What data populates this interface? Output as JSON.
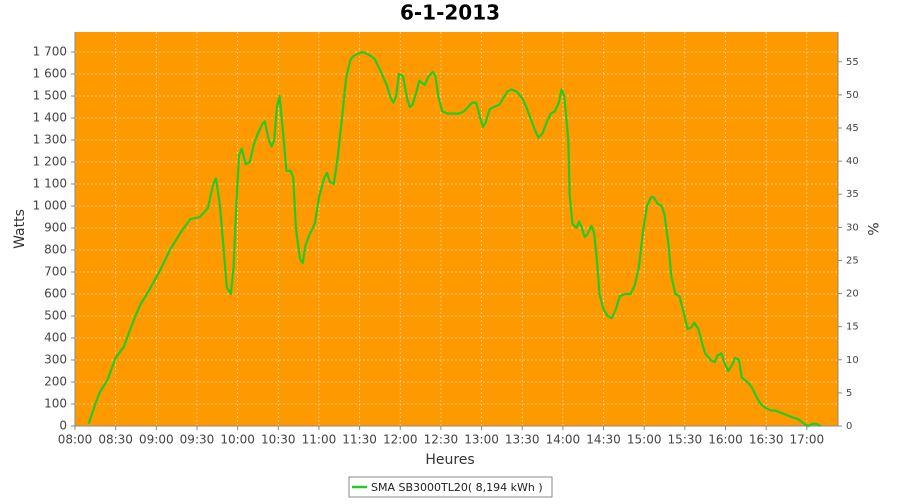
{
  "chart_data": {
    "type": "line",
    "title": "6-1-2013",
    "x_label": "Heures",
    "y_label": "Watts",
    "y2_label": "%",
    "x": [
      "08:10",
      "08:15",
      "08:18",
      "08:24",
      "08:30",
      "08:36",
      "08:42",
      "08:48",
      "08:55",
      "09:03",
      "09:10",
      "09:18",
      "09:25",
      "09:32",
      "09:38",
      "09:42",
      "09:44",
      "09:47",
      "09:50",
      "09:52",
      "09:55",
      "09:57",
      "09:59",
      "10:01",
      "10:03",
      "10:06",
      "10:09",
      "10:12",
      "10:15",
      "10:18",
      "10:20",
      "10:23",
      "10:25",
      "10:27",
      "10:29",
      "10:31",
      "10:34",
      "10:36",
      "10:39",
      "10:41",
      "10:43",
      "10:46",
      "10:48",
      "10:50",
      "10:53",
      "10:57",
      "11:00",
      "11:04",
      "11:06",
      "11:08",
      "11:11",
      "11:14",
      "11:17",
      "11:20",
      "11:23",
      "11:25",
      "11:28",
      "11:32",
      "11:36",
      "11:41",
      "11:45",
      "11:50",
      "11:53",
      "11:55",
      "11:57",
      "11:59",
      "12:02",
      "12:05",
      "12:07",
      "12:09",
      "12:12",
      "12:14",
      "12:18",
      "12:21",
      "12:24",
      "12:26",
      "12:28",
      "12:31",
      "12:35",
      "12:39",
      "12:43",
      "12:47",
      "12:50",
      "12:53",
      "12:56",
      "12:59",
      "13:01",
      "13:03",
      "13:06",
      "13:09",
      "13:13",
      "13:16",
      "13:19",
      "13:22",
      "13:26",
      "13:30",
      "13:33",
      "13:36",
      "13:39",
      "13:42",
      "13:45",
      "13:48",
      "13:51",
      "13:54",
      "13:57",
      "13:59",
      "14:01",
      "14:04",
      "14:05",
      "14:07",
      "14:10",
      "14:12",
      "14:14",
      "14:16",
      "14:18",
      "14:21",
      "14:23",
      "14:25",
      "14:27",
      "14:30",
      "14:33",
      "14:36",
      "14:39",
      "14:42",
      "14:46",
      "14:50",
      "14:53",
      "14:56",
      "14:59",
      "15:02",
      "15:05",
      "15:07",
      "15:10",
      "15:13",
      "15:15",
      "15:18",
      "15:20",
      "15:23",
      "15:26",
      "15:29",
      "15:32",
      "15:35",
      "15:37",
      "15:40",
      "15:43",
      "15:45",
      "15:49",
      "15:52",
      "15:54",
      "15:57",
      "15:59",
      "16:02",
      "16:05",
      "16:07",
      "16:10",
      "16:12",
      "16:16",
      "16:19",
      "16:23",
      "16:26",
      "16:30",
      "16:34",
      "16:37",
      "16:41",
      "16:45",
      "16:49",
      "16:54",
      "16:58",
      "17:01",
      "17:04",
      "17:07",
      "17:10"
    ],
    "series": [
      {
        "name": "SMA SB3000TL20( 8,194 kWh )",
        "color": "#22cc22",
        "values": [
          10,
          100,
          150,
          210,
          310,
          360,
          460,
          550,
          620,
          710,
          800,
          880,
          940,
          950,
          990,
          1100,
          1125,
          1000,
          780,
          630,
          600,
          720,
          1000,
          1230,
          1260,
          1190,
          1200,
          1280,
          1330,
          1370,
          1385,
          1300,
          1270,
          1300,
          1450,
          1500,
          1300,
          1160,
          1160,
          1130,
          900,
          760,
          740,
          820,
          870,
          920,
          1040,
          1130,
          1150,
          1110,
          1100,
          1230,
          1400,
          1580,
          1660,
          1680,
          1690,
          1700,
          1690,
          1670,
          1620,
          1550,
          1490,
          1470,
          1500,
          1600,
          1590,
          1490,
          1450,
          1460,
          1520,
          1570,
          1550,
          1590,
          1610,
          1590,
          1500,
          1430,
          1420,
          1420,
          1420,
          1430,
          1450,
          1470,
          1470,
          1400,
          1360,
          1380,
          1440,
          1450,
          1460,
          1490,
          1520,
          1530,
          1520,
          1490,
          1450,
          1400,
          1350,
          1310,
          1330,
          1380,
          1420,
          1430,
          1470,
          1530,
          1500,
          1300,
          1050,
          920,
          900,
          930,
          900,
          860,
          870,
          910,
          880,
          760,
          600,
          530,
          500,
          490,
          530,
          590,
          600,
          600,
          640,
          720,
          880,
          1000,
          1040,
          1040,
          1010,
          1000,
          960,
          820,
          680,
          600,
          590,
          520,
          440,
          450,
          470,
          440,
          370,
          330,
          300,
          290,
          320,
          330,
          290,
          250,
          280,
          310,
          300,
          220,
          200,
          180,
          130,
          100,
          80,
          70,
          70,
          60,
          50,
          40,
          30,
          10,
          0,
          10,
          10,
          0
        ]
      }
    ],
    "xlim": [
      "08:00",
      "17:23"
    ],
    "xticks": [
      "08:00",
      "08:30",
      "09:00",
      "09:30",
      "10:00",
      "10:30",
      "11:00",
      "11:30",
      "12:00",
      "12:30",
      "13:00",
      "13:30",
      "14:00",
      "14:30",
      "15:00",
      "15:30",
      "16:00",
      "16:30",
      "17:00"
    ],
    "ylim": [
      0,
      1791
    ],
    "yticks": [
      0,
      100,
      200,
      300,
      400,
      500,
      600,
      700,
      800,
      900,
      {
        "value": 1000,
        "label": "1 000"
      },
      {
        "value": 1100,
        "label": "1 100"
      },
      {
        "value": 1200,
        "label": "1 200"
      },
      {
        "value": 1300,
        "label": "1 300"
      },
      {
        "value": 1400,
        "label": "1 400"
      },
      {
        "value": 1500,
        "label": "1 500"
      },
      {
        "value": 1600,
        "label": "1 600"
      },
      {
        "value": 1700,
        "label": "1 700"
      }
    ],
    "y2lim": [
      0,
      59.5
    ],
    "y2ticks": [
      0,
      5,
      10,
      15,
      20,
      25,
      30,
      35,
      40,
      45,
      50,
      55
    ],
    "grid": true,
    "background": "#ff9900",
    "legend": "bottom"
  }
}
